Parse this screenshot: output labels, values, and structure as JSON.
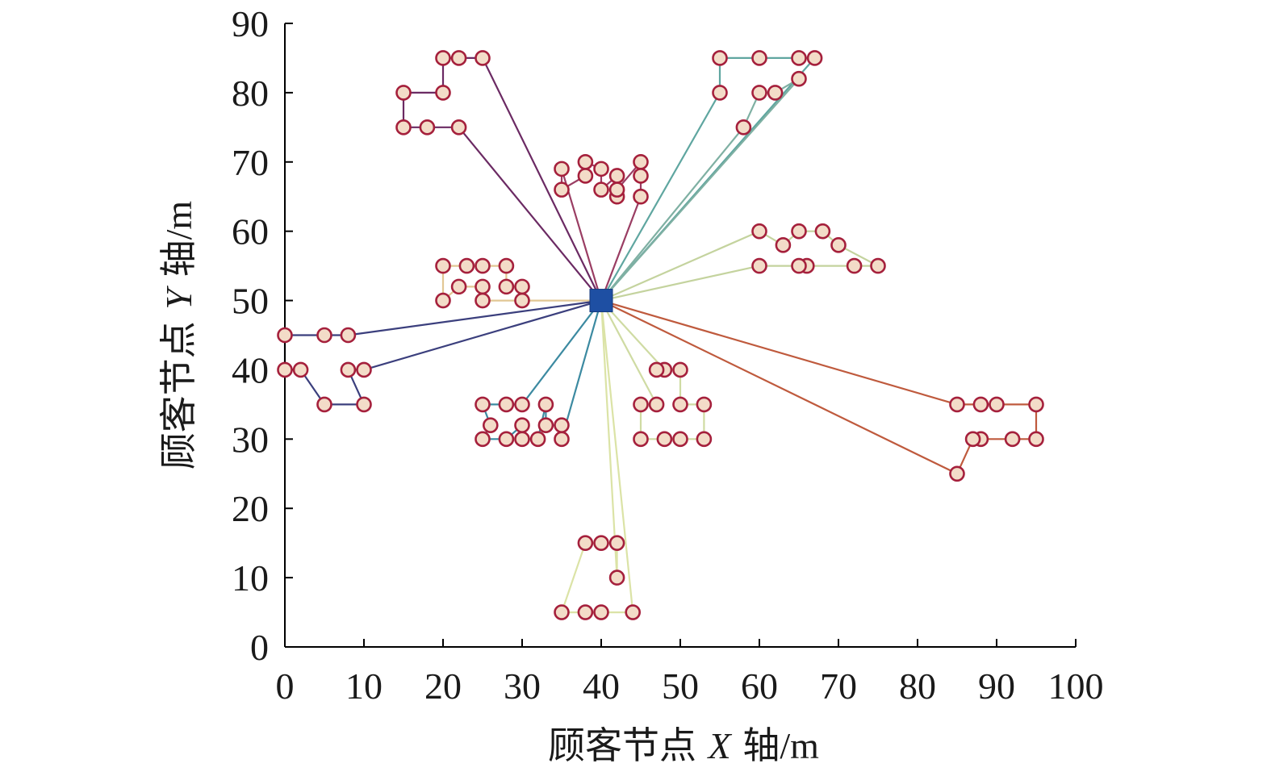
{
  "chart_data": {
    "type": "scatter",
    "title": "",
    "xlabel": {
      "prefix": "顾客节点 ",
      "variable": "X",
      "suffix": " 轴",
      "unit": "/m"
    },
    "ylabel": {
      "prefix": "顾客节点 ",
      "variable": "Y",
      "suffix": " 轴",
      "unit": "/m"
    },
    "xlim": [
      0,
      100
    ],
    "ylim": [
      0,
      90
    ],
    "xticks": [
      "0",
      "10",
      "20",
      "30",
      "40",
      "50",
      "60",
      "70",
      "80",
      "90",
      "100"
    ],
    "yticks": [
      "0",
      "10",
      "20",
      "30",
      "40",
      "50",
      "60",
      "70",
      "80",
      "90"
    ],
    "grid": false,
    "legend": "none",
    "depot": {
      "x": 40,
      "y": 50,
      "color": "#1e4fa3"
    },
    "customer_style": {
      "fill": "#f3dcc8",
      "stroke": "#a5203c"
    },
    "routes": [
      {
        "color": "#6b2a63",
        "points": [
          [
            40,
            50
          ],
          [
            25,
            85
          ],
          [
            22,
            85
          ],
          [
            20,
            85
          ],
          [
            20,
            80
          ],
          [
            15,
            80
          ],
          [
            15,
            75
          ],
          [
            18,
            75
          ],
          [
            22,
            75
          ],
          [
            40,
            50
          ]
        ]
      },
      {
        "color": "#9a3d63",
        "points": [
          [
            40,
            50
          ],
          [
            35,
            69
          ],
          [
            35,
            66
          ],
          [
            38,
            68
          ],
          [
            38,
            70
          ],
          [
            40,
            69
          ],
          [
            40,
            66
          ],
          [
            42,
            68
          ],
          [
            42,
            65
          ],
          [
            42,
            66
          ],
          [
            45,
            70
          ],
          [
            45,
            68
          ],
          [
            45,
            65
          ],
          [
            40,
            50
          ]
        ]
      },
      {
        "color": "#5fa6a0",
        "points": [
          [
            40,
            50
          ],
          [
            55,
            80
          ],
          [
            55,
            85
          ],
          [
            60,
            85
          ],
          [
            65,
            85
          ],
          [
            67,
            85
          ],
          [
            40,
            50
          ]
        ]
      },
      {
        "color": "#7fb0a3",
        "points": [
          [
            40,
            50
          ],
          [
            58,
            75
          ],
          [
            60,
            80
          ],
          [
            62,
            80
          ],
          [
            65,
            82
          ],
          [
            40,
            50
          ]
        ]
      },
      {
        "color": "#c4d39e",
        "points": [
          [
            40,
            50
          ],
          [
            60,
            60
          ],
          [
            63,
            58
          ],
          [
            65,
            60
          ],
          [
            68,
            60
          ],
          [
            70,
            58
          ],
          [
            75,
            55
          ],
          [
            72,
            55
          ],
          [
            66,
            55
          ],
          [
            65,
            55
          ],
          [
            60,
            55
          ],
          [
            40,
            50
          ]
        ]
      },
      {
        "color": "#e2c794",
        "points": [
          [
            40,
            50
          ],
          [
            30,
            50
          ],
          [
            30,
            52
          ],
          [
            28,
            52
          ],
          [
            28,
            55
          ],
          [
            25,
            55
          ],
          [
            23,
            55
          ],
          [
            20,
            55
          ],
          [
            20,
            50
          ],
          [
            22,
            52
          ],
          [
            25,
            52
          ],
          [
            25,
            50
          ],
          [
            40,
            50
          ]
        ]
      },
      {
        "color": "#3b3f7d",
        "points": [
          [
            40,
            50
          ],
          [
            8,
            45
          ],
          [
            5,
            45
          ],
          [
            0,
            45
          ],
          [
            0,
            40
          ],
          [
            2,
            40
          ],
          [
            5,
            35
          ],
          [
            10,
            35
          ],
          [
            8,
            40
          ],
          [
            10,
            40
          ],
          [
            40,
            50
          ]
        ]
      },
      {
        "color": "#3c8aa1",
        "points": [
          [
            40,
            50
          ],
          [
            35,
            30
          ],
          [
            35,
            32
          ],
          [
            33,
            32
          ],
          [
            33,
            35
          ],
          [
            32,
            30
          ],
          [
            30,
            30
          ],
          [
            30,
            32
          ],
          [
            28,
            30
          ],
          [
            25,
            30
          ],
          [
            26,
            32
          ],
          [
            25,
            35
          ],
          [
            28,
            35
          ],
          [
            30,
            35
          ],
          [
            40,
            50
          ]
        ]
      },
      {
        "color": "#cfdba3",
        "points": [
          [
            40,
            50
          ],
          [
            48,
            40
          ],
          [
            47,
            40
          ],
          [
            50,
            40
          ],
          [
            50,
            35
          ],
          [
            53,
            35
          ],
          [
            53,
            30
          ],
          [
            50,
            30
          ],
          [
            48,
            30
          ],
          [
            45,
            30
          ],
          [
            45,
            35
          ],
          [
            47,
            35
          ],
          [
            40,
            50
          ]
        ]
      },
      {
        "color": "#bf5a3d",
        "points": [
          [
            40,
            50
          ],
          [
            85,
            35
          ],
          [
            88,
            35
          ],
          [
            90,
            35
          ],
          [
            95,
            35
          ],
          [
            95,
            30
          ],
          [
            92,
            30
          ],
          [
            88,
            30
          ],
          [
            87,
            30
          ],
          [
            85,
            25
          ],
          [
            40,
            50
          ]
        ]
      },
      {
        "color": "#dbe3a6",
        "points": [
          [
            40,
            50
          ],
          [
            44,
            5
          ],
          [
            40,
            5
          ],
          [
            38,
            5
          ],
          [
            35,
            5
          ],
          [
            38,
            15
          ],
          [
            40,
            15
          ],
          [
            42,
            15
          ],
          [
            42,
            10
          ],
          [
            40,
            50
          ]
        ]
      }
    ]
  }
}
